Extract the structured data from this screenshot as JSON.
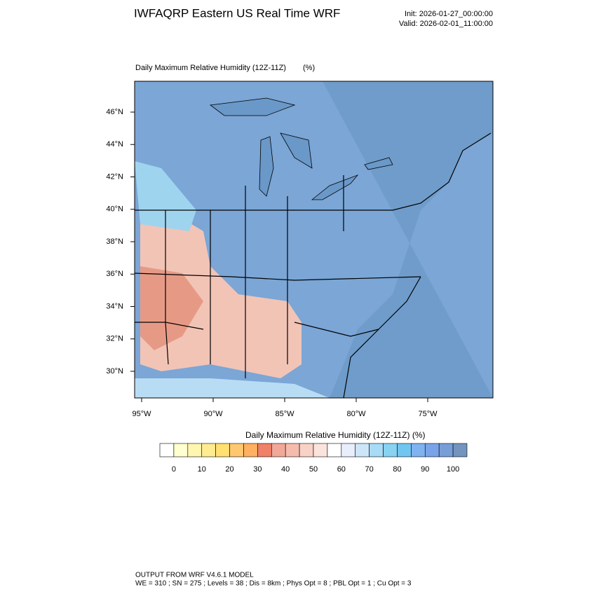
{
  "header": {
    "title": "IWFAQRP Eastern US Real Time WRF",
    "init": "Init: 2026-01-27_00:00:00",
    "valid": "Valid: 2026-02-01_11:00:00"
  },
  "map": {
    "title": "Daily Maximum Relative Humidity (12Z-11Z)",
    "units": "(%)",
    "lat_labels": [
      "46°N",
      "44°N",
      "42°N",
      "40°N",
      "38°N",
      "36°N",
      "34°N",
      "32°N",
      "30°N"
    ],
    "lon_labels": [
      "95°W",
      "90°W",
      "85°W",
      "80°W",
      "75°W"
    ]
  },
  "colorbar": {
    "title": "Daily Maximum Relative Humidity (12Z-11Z)  (%)",
    "labels": [
      0,
      10,
      20,
      30,
      40,
      50,
      60,
      70,
      80,
      90,
      100
    ],
    "colors": [
      "#ffffff",
      "#ffffd0",
      "#fff6b0",
      "#ffec90",
      "#ffe070",
      "#ffc870",
      "#ffb060",
      "#f08068",
      "#f2a898",
      "#f5bcae",
      "#f8d2c6",
      "#fbe4dc",
      "#ffffff",
      "#e8eefc",
      "#cce6f8",
      "#a8dcf6",
      "#88d2f2",
      "#70c6f0",
      "#80b2f0",
      "#7aa4ea",
      "#789ed8",
      "#7494c0"
    ]
  },
  "footer": {
    "line1": "OUTPUT FROM WRF V4.6.1 MODEL",
    "line2": "WE = 310 ; SN = 275 ; Levels = 38 ; Dis = 8km ; Phys Opt = 8 ; PBL Opt = 1 ; Cu Opt = 3"
  }
}
